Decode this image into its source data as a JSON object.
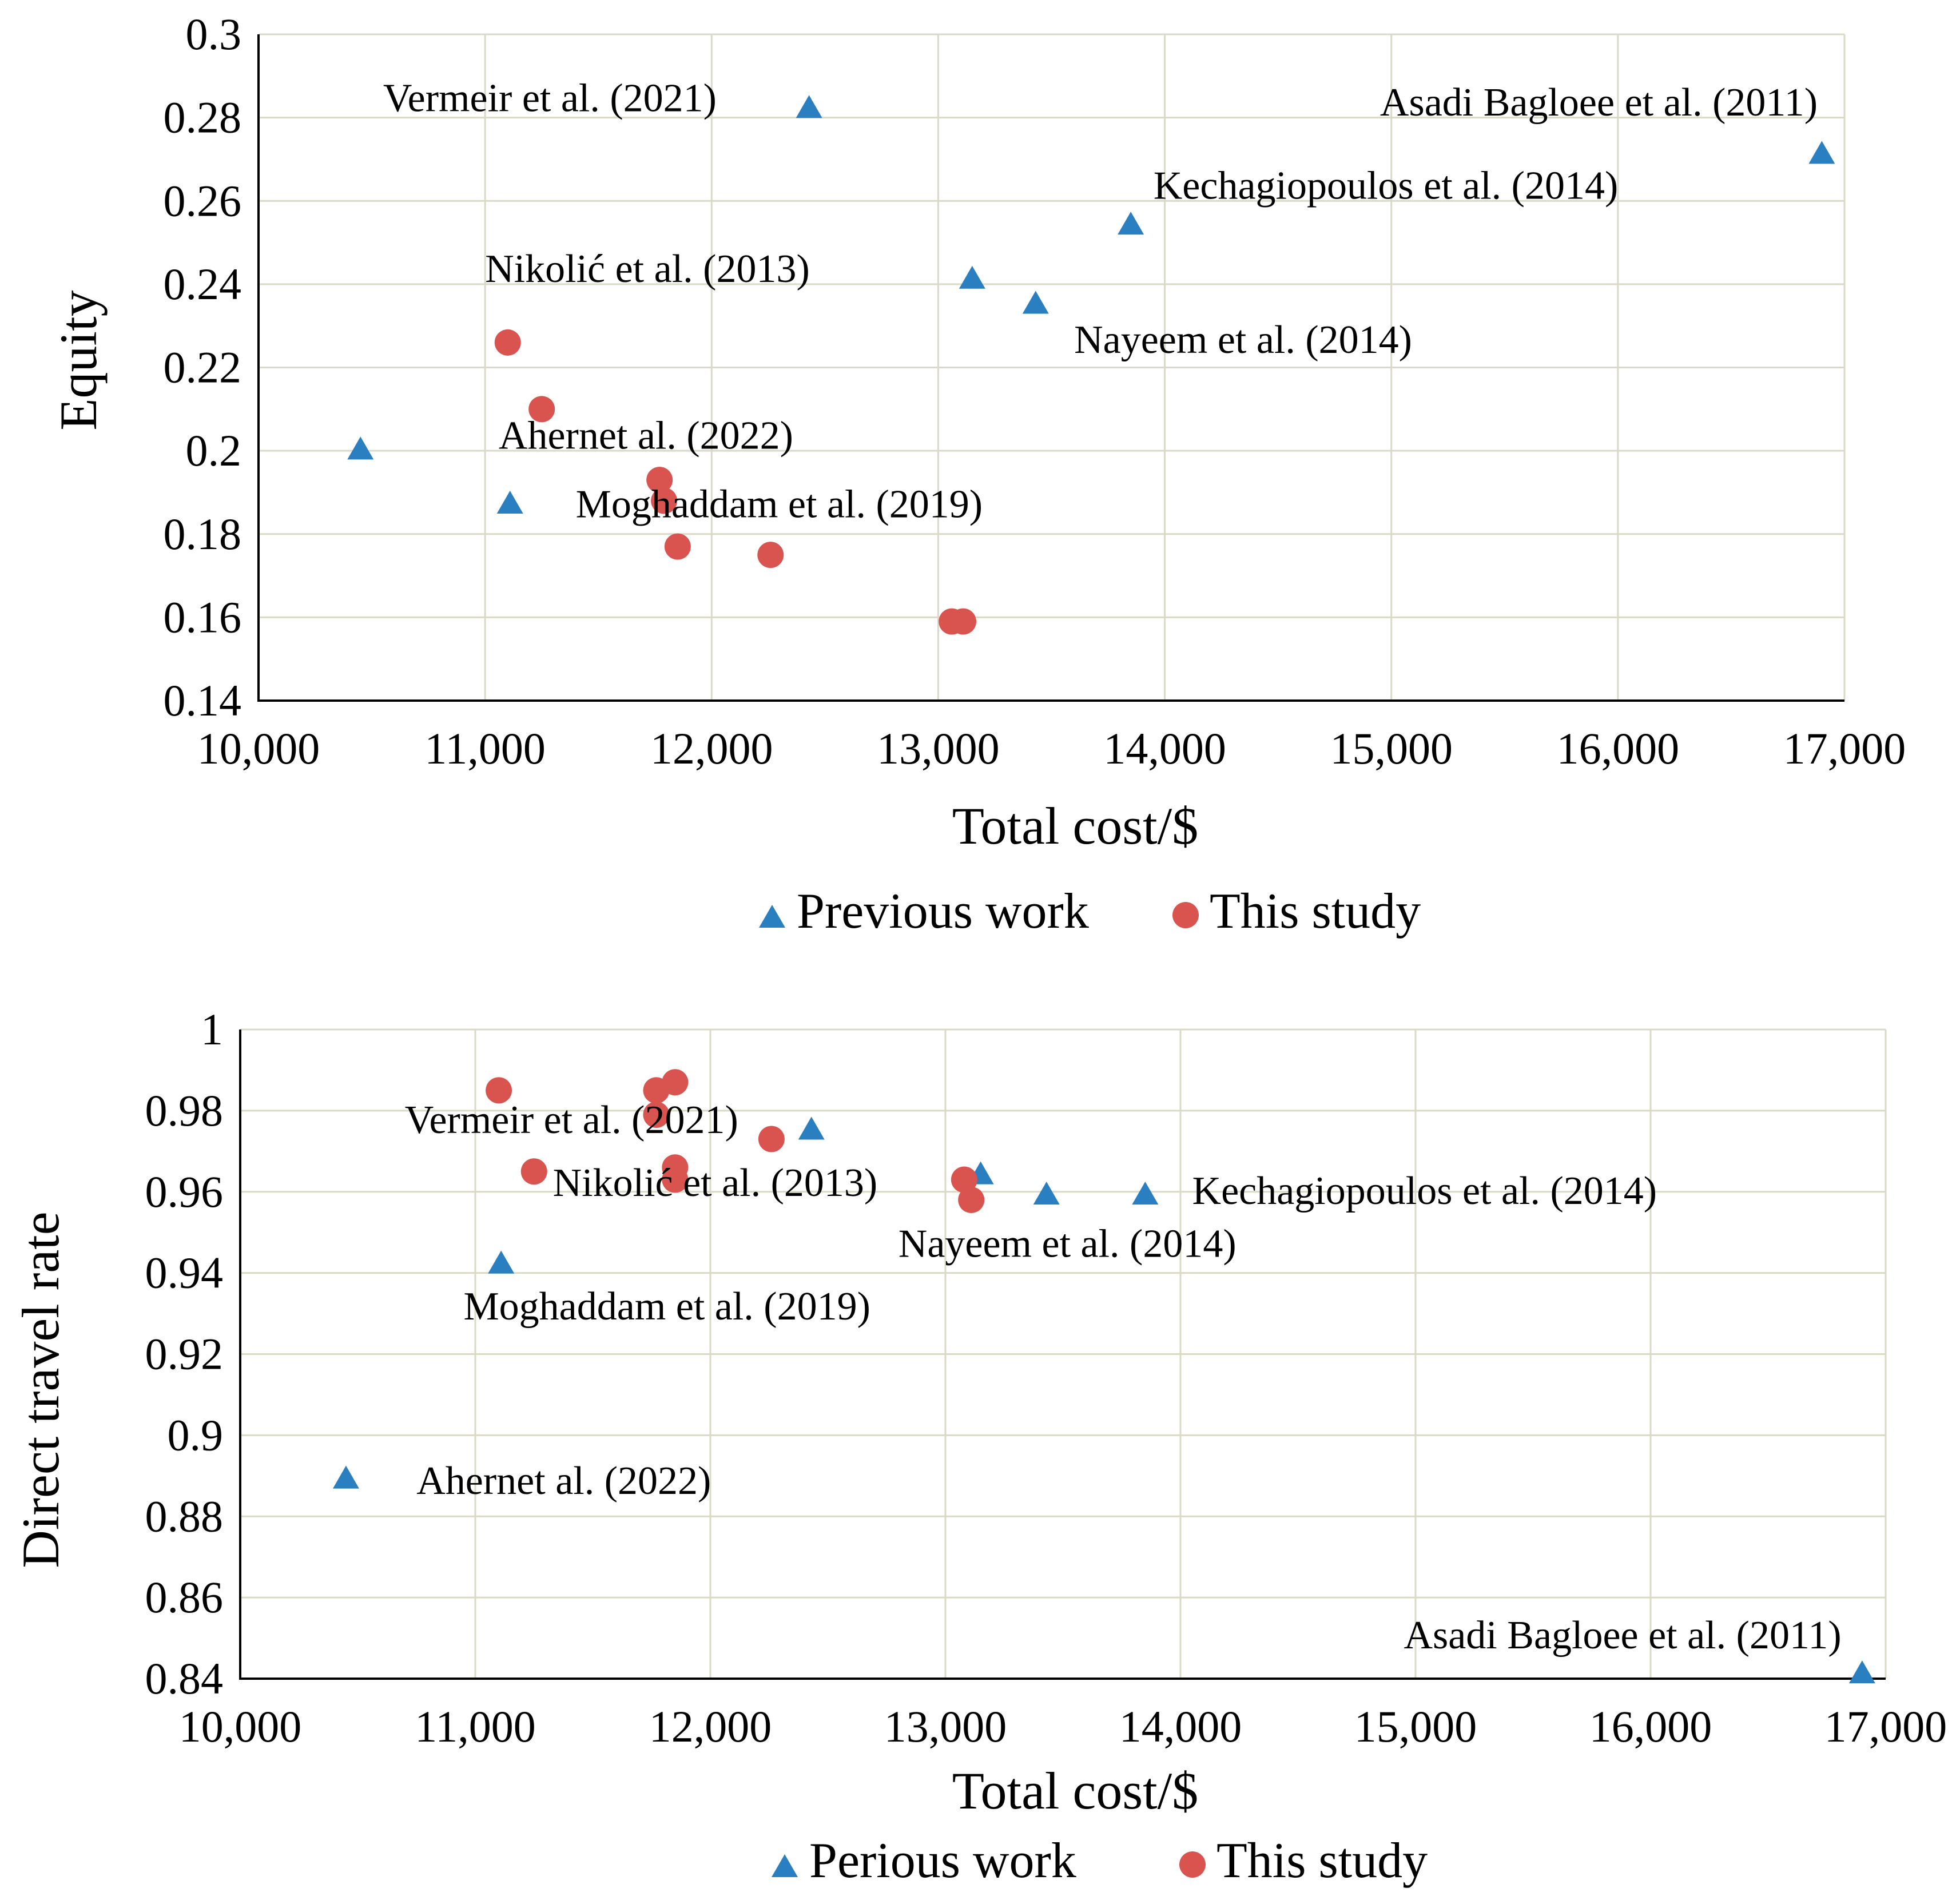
{
  "chart_data": [
    {
      "type": "scatter",
      "xlabel": "Total cost/$",
      "ylabel": "Equity",
      "xlim": [
        10000,
        17000
      ],
      "ylim": [
        0.14,
        0.3
      ],
      "x_ticks": [
        10000,
        11000,
        12000,
        13000,
        14000,
        15000,
        16000,
        17000
      ],
      "x_tick_labels": [
        "10,000",
        "11,000",
        "12,000",
        "13,000",
        "14,000",
        "15,000",
        "16,000",
        "17,000"
      ],
      "y_ticks": [
        0.14,
        0.16,
        0.18,
        0.2,
        0.22,
        0.24,
        0.26,
        0.28,
        0.3
      ],
      "y_tick_labels": [
        "0.14",
        "0.16",
        "0.18",
        "0.2",
        "0.22",
        "0.24",
        "0.26",
        "0.28",
        "0.3"
      ],
      "grid": true,
      "legend_position": "bottom",
      "series": [
        {
          "name": "Previous work",
          "marker": "triangle",
          "color": "#2a7fc0",
          "x": [
            10450,
            11110,
            12430,
            13150,
            13430,
            13850,
            16900
          ],
          "y": [
            0.2,
            0.187,
            0.282,
            0.241,
            0.235,
            0.254,
            0.271
          ]
        },
        {
          "name": "This study",
          "marker": "circle",
          "color": "#d9534f",
          "x": [
            11100,
            11250,
            11770,
            11790,
            11850,
            12260,
            13060,
            13110
          ],
          "y": [
            0.226,
            0.21,
            0.193,
            0.188,
            0.177,
            0.175,
            0.159,
            0.159
          ]
        }
      ],
      "annotations": [
        {
          "text": "Vermeir et al. (2021)",
          "x": 10550,
          "y": 0.2815
        },
        {
          "text": "Asadi Bagloee et al. (2011)",
          "x": 14950,
          "y": 0.2805
        },
        {
          "text": "Kechagiopoulos et al. (2014)",
          "x": 13950,
          "y": 0.2605
        },
        {
          "text": "Nikolić et al. (2013)",
          "x": 11000,
          "y": 0.2405
        },
        {
          "text": "Nayeem et al. (2014)",
          "x": 13600,
          "y": 0.2235
        },
        {
          "text": "Ahernet al. (2022)",
          "x": 11060,
          "y": 0.2005
        },
        {
          "text": "Moghaddam et al. (2019)",
          "x": 11400,
          "y": 0.184
        }
      ]
    },
    {
      "type": "scatter",
      "xlabel": "Total cost/$",
      "ylabel": "Direct travel rate",
      "xlim": [
        10000,
        17000
      ],
      "ylim": [
        0.84,
        1
      ],
      "x_ticks": [
        10000,
        11000,
        12000,
        13000,
        14000,
        15000,
        16000,
        17000
      ],
      "x_tick_labels": [
        "10,000",
        "11,000",
        "12,000",
        "13,000",
        "14,000",
        "15,000",
        "16,000",
        "17,000"
      ],
      "y_ticks": [
        0.84,
        0.86,
        0.88,
        0.9,
        0.92,
        0.94,
        0.96,
        0.98,
        1
      ],
      "y_tick_labels": [
        "0.84",
        "0.86",
        "0.88",
        "0.9",
        "0.92",
        "0.94",
        "0.96",
        "0.98",
        "1"
      ],
      "grid": true,
      "legend_position": "bottom",
      "series": [
        {
          "name": "Perious work",
          "marker": "triangle",
          "color": "#2a7fc0",
          "x": [
            10450,
            11110,
            12430,
            13150,
            13430,
            13850,
            16900
          ],
          "y": [
            0.889,
            0.942,
            0.975,
            0.964,
            0.959,
            0.959,
            0.841
          ]
        },
        {
          "name": "This study",
          "marker": "circle",
          "color": "#d9534f",
          "x": [
            11100,
            11250,
            11770,
            11770,
            11850,
            11850,
            11850,
            12260,
            13080,
            13110
          ],
          "y": [
            0.985,
            0.965,
            0.985,
            0.979,
            0.987,
            0.966,
            0.963,
            0.973,
            0.963,
            0.958
          ]
        }
      ],
      "annotations": [
        {
          "text": "Vermeir et al. (2021)",
          "x": 10700,
          "y": 0.9745
        },
        {
          "text": "Nikolić et al. (2013)",
          "x": 11330,
          "y": 0.959
        },
        {
          "text": "Kechagiopoulos et al. (2014)",
          "x": 14050,
          "y": 0.957
        },
        {
          "text": "Nayeem et al. (2014)",
          "x": 12800,
          "y": 0.944
        },
        {
          "text": "Moghaddam et al. (2019)",
          "x": 10950,
          "y": 0.9285
        },
        {
          "text": "Ahernet al. (2022)",
          "x": 10750,
          "y": 0.8855
        },
        {
          "text": "Asadi Bagloee et al. (2011)",
          "x": 14950,
          "y": 0.8475
        }
      ]
    }
  ]
}
